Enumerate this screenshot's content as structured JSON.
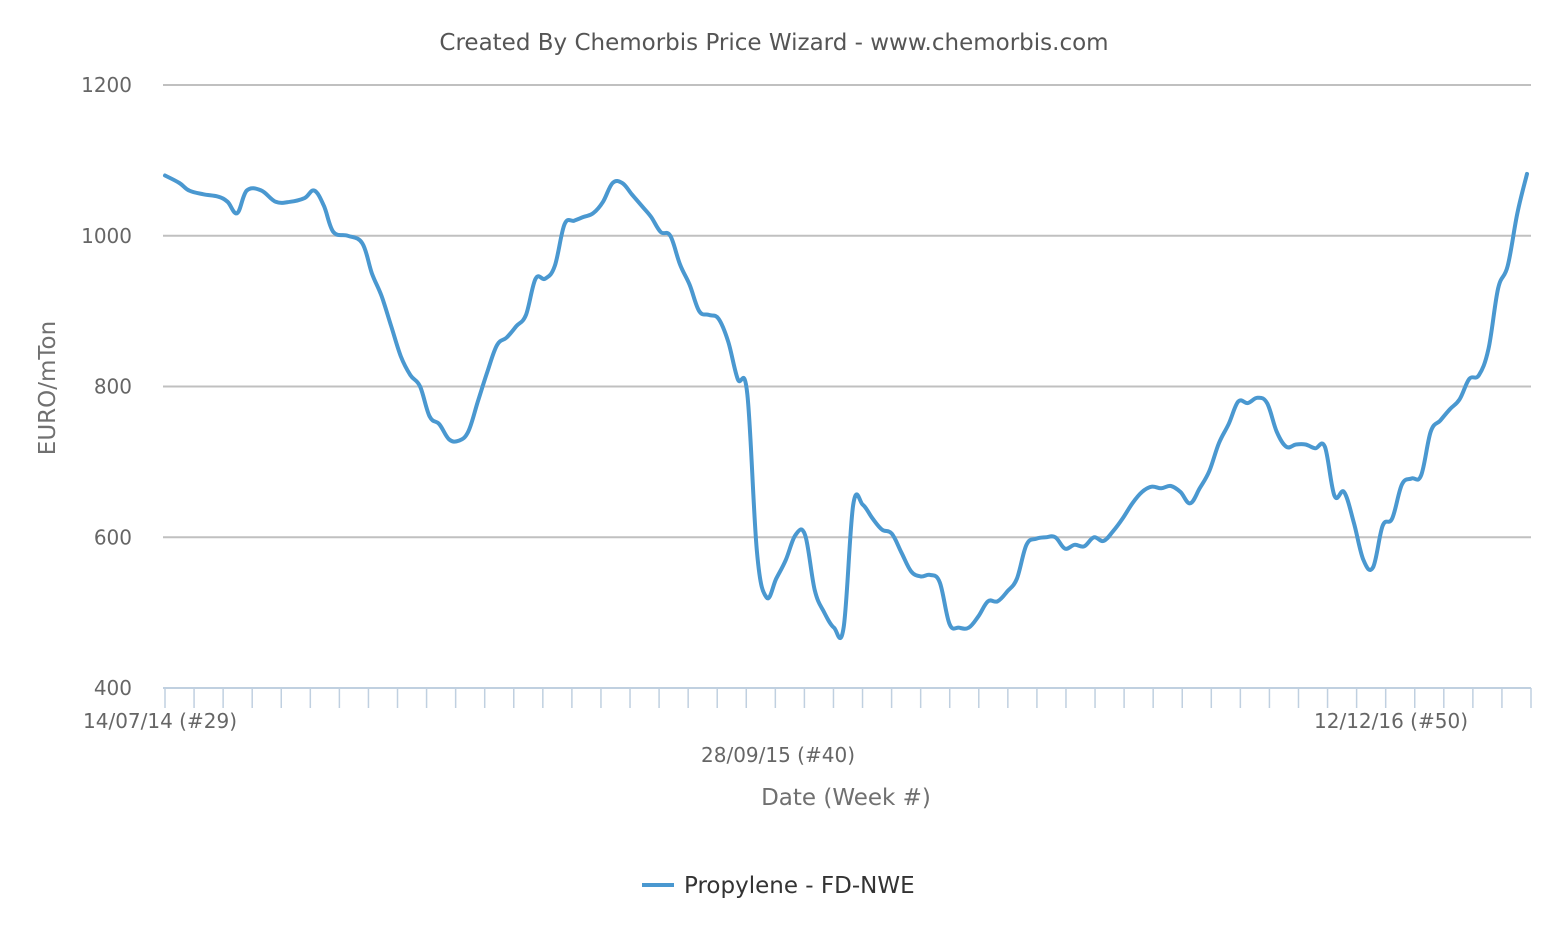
{
  "chart_data": {
    "type": "line",
    "title": "Created By Chemorbis Price Wizard - www.chemorbis.com",
    "xlabel": "Date (Week #)",
    "ylabel": "EURO/mTon",
    "ylim": [
      400,
      1200
    ],
    "yticks": [
      400,
      600,
      800,
      1000,
      1200
    ],
    "grid": true,
    "legend_position": "bottom-center",
    "series_color": "#4a98d0",
    "x_tick_labels": [
      {
        "label": "14/07/14 (#29)",
        "x": 0
      },
      {
        "label": "28/09/15 (#40)",
        "x": 63
      },
      {
        "label": "12/12/16 (#50)",
        "x": 126
      }
    ],
    "x_count": 136,
    "series": [
      {
        "name": "Propylene - FD-NWE",
        "points": [
          [
            0,
            1080
          ],
          [
            1.5,
            1070
          ],
          [
            2.5,
            1060
          ],
          [
            4,
            1055
          ],
          [
            5.5,
            1052
          ],
          [
            6.5,
            1045
          ],
          [
            7.5,
            1030
          ],
          [
            8.5,
            1060
          ],
          [
            10,
            1060
          ],
          [
            11.5,
            1045
          ],
          [
            13,
            1045
          ],
          [
            14.5,
            1050
          ],
          [
            15.5,
            1060
          ],
          [
            16.5,
            1040
          ],
          [
            17.5,
            1005
          ],
          [
            19,
            1000
          ],
          [
            20.5,
            990
          ],
          [
            21.5,
            950
          ],
          [
            22.5,
            920
          ],
          [
            23.5,
            880
          ],
          [
            24.5,
            840
          ],
          [
            25.5,
            815
          ],
          [
            26.5,
            800
          ],
          [
            27.5,
            760
          ],
          [
            28.5,
            750
          ],
          [
            29.5,
            730
          ],
          [
            30.5,
            728
          ],
          [
            31.5,
            740
          ],
          [
            32.5,
            780
          ],
          [
            33.5,
            820
          ],
          [
            34.5,
            855
          ],
          [
            35.5,
            865
          ],
          [
            36.5,
            880
          ],
          [
            37.5,
            895
          ],
          [
            38.5,
            943
          ],
          [
            39.5,
            943
          ],
          [
            40.5,
            960
          ],
          [
            41.5,
            1015
          ],
          [
            42.5,
            1020
          ],
          [
            43.5,
            1025
          ],
          [
            44.5,
            1030
          ],
          [
            45.5,
            1045
          ],
          [
            46.5,
            1070
          ],
          [
            47.5,
            1070
          ],
          [
            48.5,
            1055
          ],
          [
            49.5,
            1040
          ],
          [
            50.5,
            1025
          ],
          [
            51.5,
            1005
          ],
          [
            52.5,
            1000
          ],
          [
            53.5,
            962
          ],
          [
            54.5,
            935
          ],
          [
            55.5,
            900
          ],
          [
            56.5,
            895
          ],
          [
            57.5,
            890
          ],
          [
            58.5,
            860
          ],
          [
            59.5,
            810
          ],
          [
            60.5,
            790
          ],
          [
            61.5,
            580
          ],
          [
            62.5,
            520
          ],
          [
            63.5,
            545
          ],
          [
            64.5,
            570
          ],
          [
            65.5,
            603
          ],
          [
            66.5,
            603
          ],
          [
            67.5,
            530
          ],
          [
            68.5,
            500
          ],
          [
            69.5,
            480
          ],
          [
            70.5,
            480
          ],
          [
            71.5,
            643
          ],
          [
            72.5,
            643
          ],
          [
            73.5,
            625
          ],
          [
            74.5,
            610
          ],
          [
            75.5,
            605
          ],
          [
            76.5,
            580
          ],
          [
            77.5,
            555
          ],
          [
            78.5,
            548
          ],
          [
            79.5,
            550
          ],
          [
            80.5,
            540
          ],
          [
            81.5,
            485
          ],
          [
            82.5,
            480
          ],
          [
            83.5,
            480
          ],
          [
            84.5,
            495
          ],
          [
            85.5,
            515
          ],
          [
            86.5,
            515
          ],
          [
            87.5,
            528
          ],
          [
            88.5,
            545
          ],
          [
            89.5,
            590
          ],
          [
            90.5,
            598
          ],
          [
            91.5,
            600
          ],
          [
            92.5,
            600
          ],
          [
            93.5,
            585
          ],
          [
            94.5,
            590
          ],
          [
            95.5,
            588
          ],
          [
            96.5,
            600
          ],
          [
            97.5,
            595
          ],
          [
            98.5,
            608
          ],
          [
            99.5,
            625
          ],
          [
            100.5,
            645
          ],
          [
            101.5,
            660
          ],
          [
            102.5,
            667
          ],
          [
            103.5,
            665
          ],
          [
            104.5,
            668
          ],
          [
            105.5,
            660
          ],
          [
            106.5,
            645
          ],
          [
            107.5,
            665
          ],
          [
            108.5,
            688
          ],
          [
            109.5,
            725
          ],
          [
            110.5,
            750
          ],
          [
            111.5,
            780
          ],
          [
            112.5,
            778
          ],
          [
            113.5,
            785
          ],
          [
            114.5,
            778
          ],
          [
            115.5,
            740
          ],
          [
            116.5,
            720
          ],
          [
            117.5,
            723
          ],
          [
            118.5,
            723
          ],
          [
            119.5,
            718
          ],
          [
            120.5,
            720
          ],
          [
            121.5,
            655
          ],
          [
            122.5,
            660
          ],
          [
            123.5,
            620
          ],
          [
            124.5,
            570
          ],
          [
            125.5,
            560
          ],
          [
            126.5,
            615
          ],
          [
            127.5,
            625
          ],
          [
            128.5,
            670
          ],
          [
            129.5,
            678
          ],
          [
            130.5,
            682
          ],
          [
            131.5,
            740
          ],
          [
            132.5,
            755
          ],
          [
            133.5,
            770
          ],
          [
            134.5,
            783
          ],
          [
            135.5,
            810
          ],
          [
            136.5,
            815
          ],
          [
            137.5,
            850
          ],
          [
            138.5,
            930
          ],
          [
            139.5,
            960
          ],
          [
            140.5,
            1030
          ],
          [
            141.5,
            1082
          ]
        ]
      }
    ]
  }
}
